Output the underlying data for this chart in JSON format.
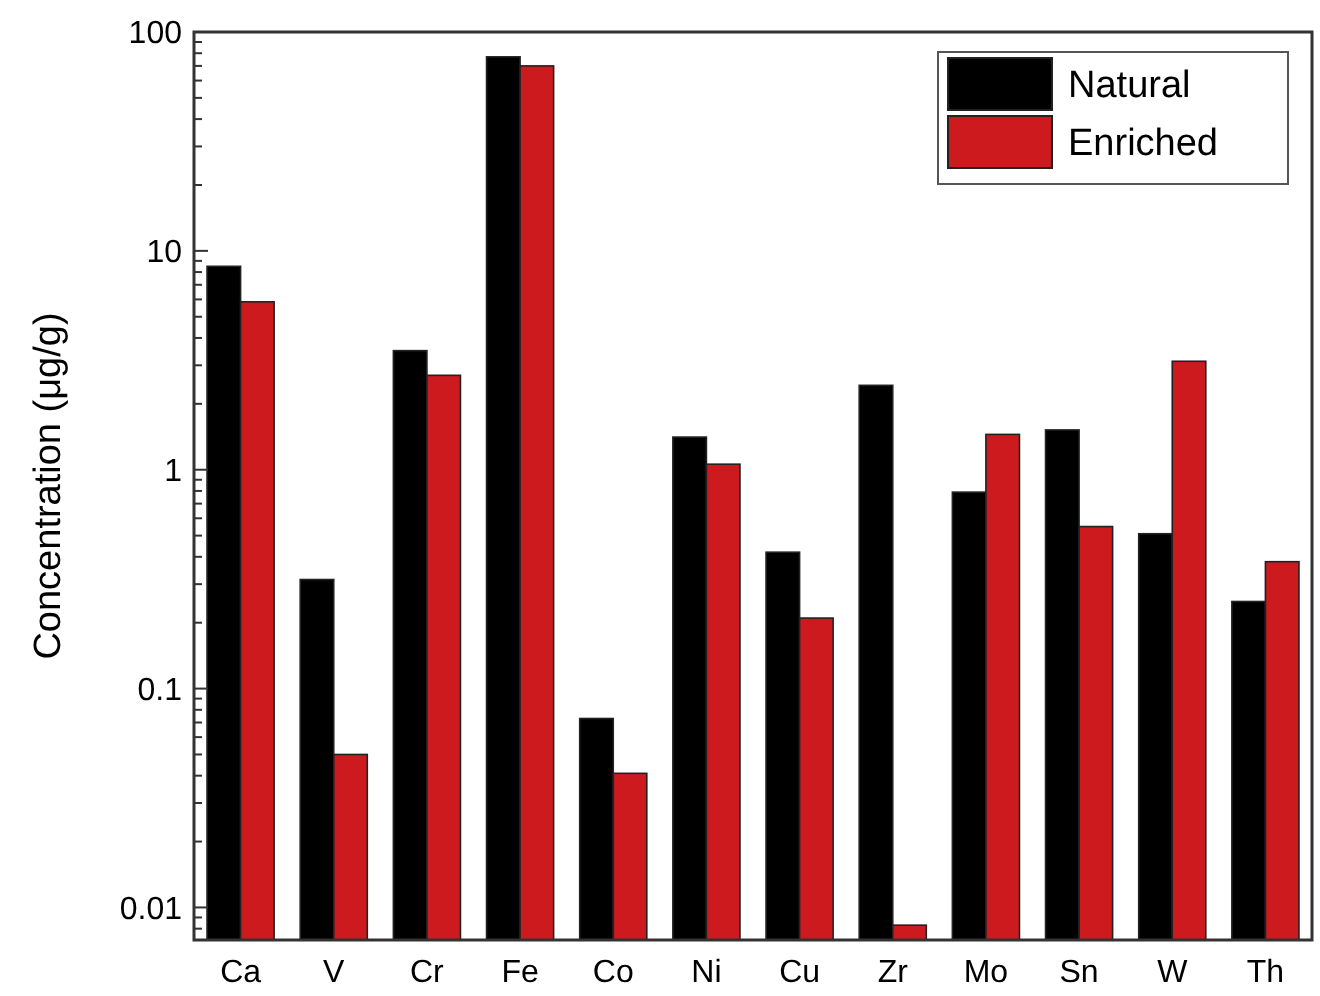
{
  "chart_data": {
    "type": "bar",
    "ylabel": "Concentration (μg/g)",
    "categories": [
      "Ca",
      "V",
      "Cr",
      "Fe",
      "Co",
      "Ni",
      "Cu",
      "Zr",
      "Mo",
      "Sn",
      "W",
      "Th"
    ],
    "series": [
      {
        "name": "Natural",
        "color": "#000000",
        "values": [
          8.5,
          0.315,
          3.5,
          77,
          0.073,
          1.41,
          0.42,
          2.43,
          0.79,
          1.52,
          0.51,
          0.25
        ]
      },
      {
        "name": "Enriched",
        "color": "#cc1a1f",
        "values": [
          5.85,
          0.05,
          2.7,
          70,
          0.041,
          1.06,
          0.21,
          0.0083,
          1.45,
          0.55,
          3.13,
          0.38
        ]
      }
    ],
    "log": true,
    "ylim": [
      0.0071,
      100
    ],
    "yticks": [
      {
        "value": 0.008,
        "label": null
      },
      {
        "value": 0.009,
        "label": null
      },
      0.01,
      {
        "value": 0.02,
        "label": null
      },
      {
        "value": 0.03,
        "label": null
      },
      {
        "value": 0.04,
        "label": null
      },
      {
        "value": 0.05,
        "label": null
      },
      {
        "value": 0.06,
        "label": null
      },
      {
        "value": 0.07,
        "label": null
      },
      {
        "value": 0.08,
        "label": null
      },
      {
        "value": 0.09,
        "label": null
      },
      0.1,
      {
        "value": 0.2,
        "label": null
      },
      {
        "value": 0.3,
        "label": null
      },
      {
        "value": 0.4,
        "label": null
      },
      {
        "value": 0.5,
        "label": null
      },
      {
        "value": 0.6,
        "label": null
      },
      {
        "value": 0.7,
        "label": null
      },
      {
        "value": 0.8,
        "label": null
      },
      {
        "value": 0.9,
        "label": null
      },
      1,
      {
        "value": 2,
        "label": null
      },
      {
        "value": 3,
        "label": null
      },
      {
        "value": 4,
        "label": null
      },
      {
        "value": 5,
        "label": null
      },
      {
        "value": 6,
        "label": null
      },
      {
        "value": 7,
        "label": null
      },
      {
        "value": 8,
        "label": null
      },
      {
        "value": 9,
        "label": null
      },
      10,
      {
        "value": 20,
        "label": null
      },
      {
        "value": 30,
        "label": null
      },
      {
        "value": 40,
        "label": null
      },
      {
        "value": 50,
        "label": null
      },
      {
        "value": 60,
        "label": null
      },
      {
        "value": 70,
        "label": null
      },
      {
        "value": 80,
        "label": null
      },
      {
        "value": 90,
        "label": null
      },
      100
    ],
    "legend": "top right",
    "grid": false
  }
}
